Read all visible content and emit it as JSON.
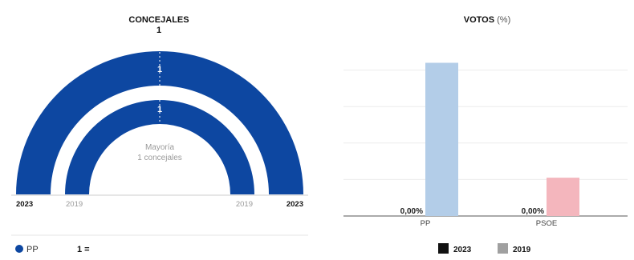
{
  "seats": {
    "title": "CONCEJALES",
    "total": "1",
    "rings": [
      {
        "year": "2023",
        "party": "PP",
        "seats": 1,
        "label": "1",
        "color": "#0d47a1"
      },
      {
        "year": "2019",
        "party": "PP",
        "seats": 1,
        "label": "1",
        "color": "#0d47a1"
      }
    ],
    "majority_line1": "Mayoría",
    "majority_line2": "1 concejales",
    "year_outer": "2023",
    "year_inner": "2019",
    "legend": {
      "party": "PP",
      "color": "#0d47a1",
      "change": "1 ="
    }
  },
  "chart_data": {
    "type": "bar",
    "title": "VOTOS",
    "title_unit": "(%)",
    "categories": [
      "PP",
      "PSOE"
    ],
    "series": [
      {
        "name": "2023",
        "color": "#111111",
        "values": [
          0,
          0
        ]
      },
      {
        "name": "2019",
        "color": "#a0a0a0",
        "values": [
          84,
          21
        ]
      }
    ],
    "category_colors_2019": [
      "#b3cde8",
      "#f4b6bd"
    ],
    "data_labels_2023": [
      "0,00%",
      "0,00%"
    ],
    "ylim": [
      0,
      100
    ],
    "grid": true,
    "legend_position": "bottom"
  }
}
